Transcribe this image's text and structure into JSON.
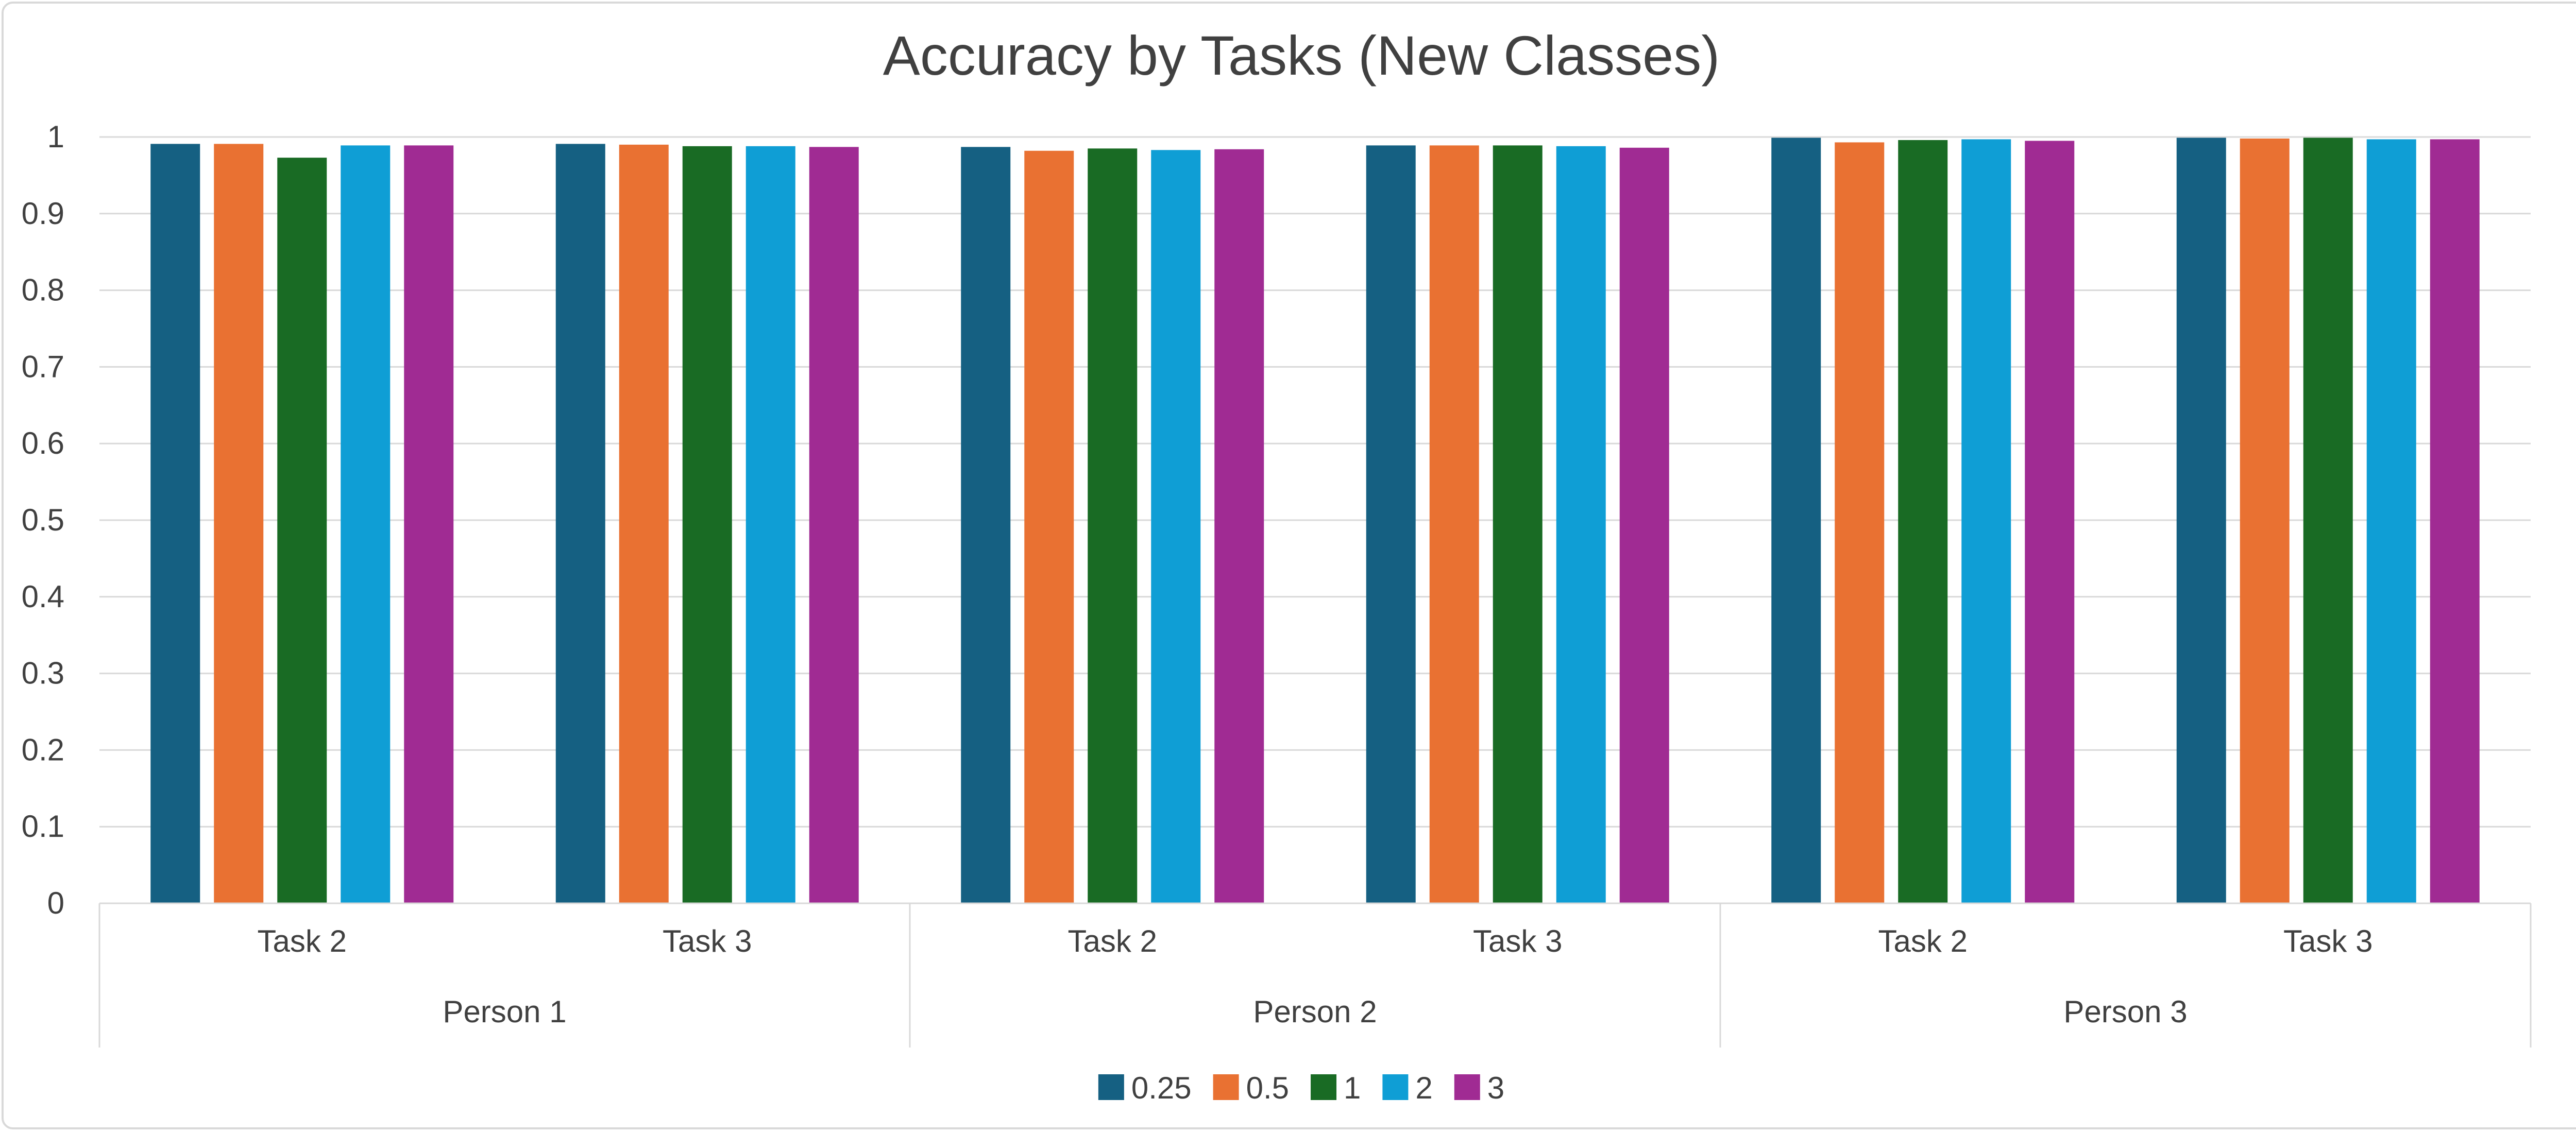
{
  "chart_data": {
    "type": "bar",
    "title": "Accuracy by Tasks (New Classes)",
    "xlabel": "",
    "ylabel": "",
    "ylim": [
      0,
      1
    ],
    "yticks": [
      "0",
      "0.1",
      "0.2",
      "0.3",
      "0.4",
      "0.5",
      "0.6",
      "0.7",
      "0.8",
      "0.9",
      "1"
    ],
    "groups": [
      {
        "label": "Person 1",
        "categories": [
          "Task 2",
          "Task 3"
        ]
      },
      {
        "label": "Person 2",
        "categories": [
          "Task 2",
          "Task 3"
        ]
      },
      {
        "label": "Person 3",
        "categories": [
          "Task 2",
          "Task 3"
        ]
      }
    ],
    "categories": [
      "Task 2",
      "Task 3",
      "Task 2",
      "Task 3",
      "Task 2",
      "Task 3"
    ],
    "series": [
      {
        "name": "0.25",
        "color": "#156082",
        "values": [
          0.991,
          0.991,
          0.987,
          0.989,
          0.999,
          0.999
        ]
      },
      {
        "name": "0.5",
        "color": "#E97132",
        "values": [
          0.991,
          0.99,
          0.982,
          0.989,
          0.993,
          0.998
        ]
      },
      {
        "name": "1",
        "color": "#196B24",
        "values": [
          0.973,
          0.988,
          0.985,
          0.989,
          0.996,
          0.999
        ]
      },
      {
        "name": "2",
        "color": "#0F9ED5",
        "values": [
          0.989,
          0.988,
          0.983,
          0.988,
          0.997,
          0.997
        ]
      },
      {
        "name": "3",
        "color": "#A02B93",
        "values": [
          0.989,
          0.987,
          0.984,
          0.986,
          0.995,
          0.997
        ]
      }
    ],
    "grid": true,
    "legend": "bottom",
    "gridline_color": "#d9d9d9",
    "text_color": "#404040"
  }
}
